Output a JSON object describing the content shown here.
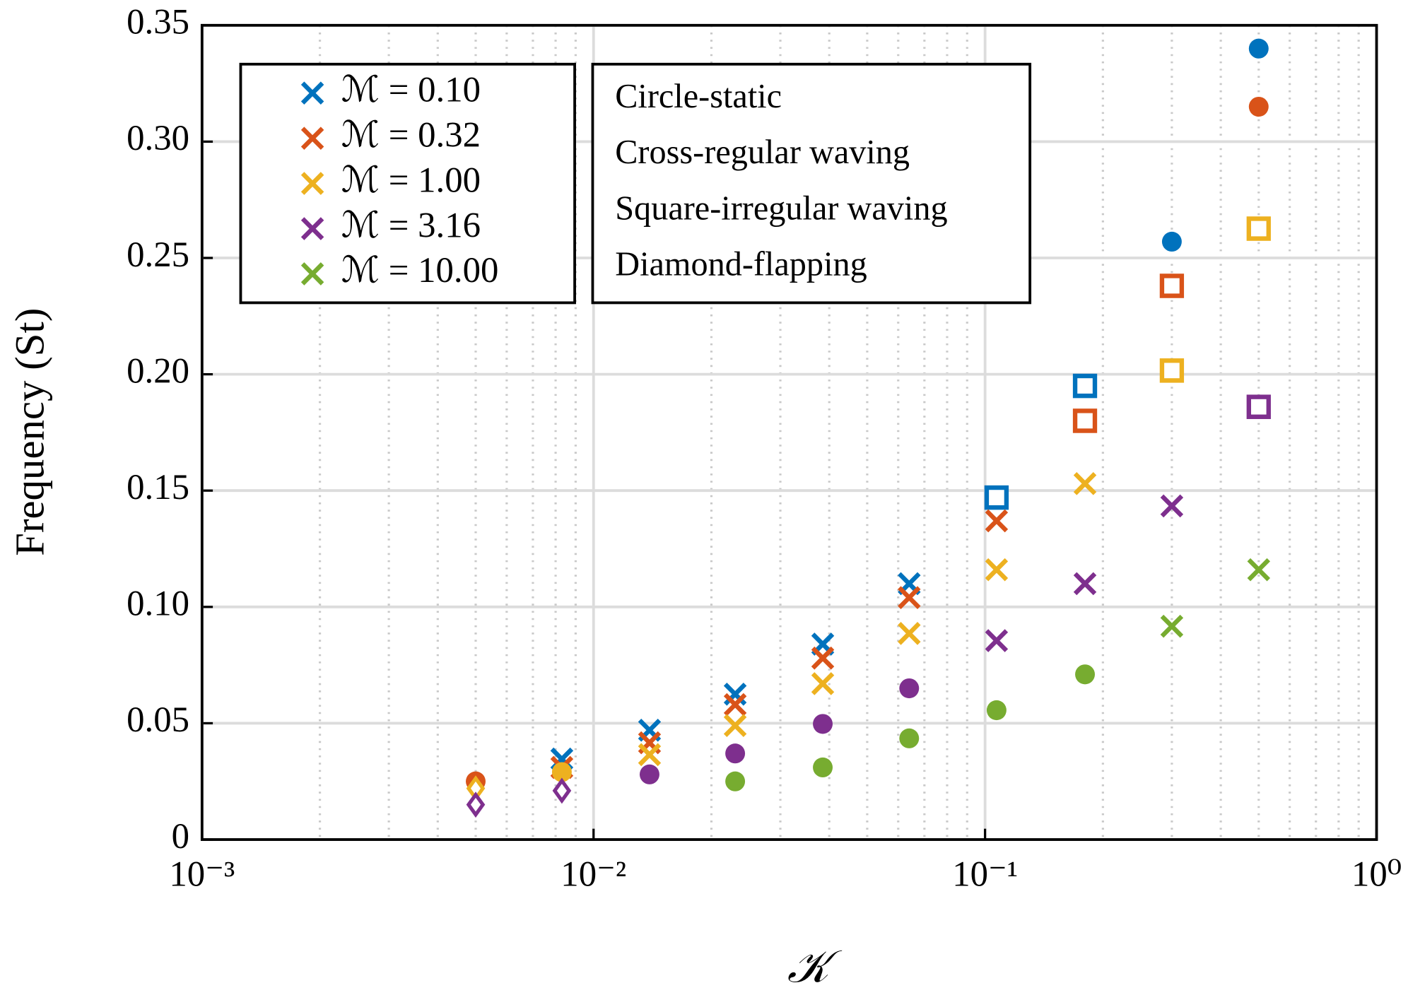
{
  "chart_data": {
    "type": "scatter",
    "x_label": "𝒦",
    "y_label": "Frequency (St)",
    "xscale": "log",
    "xlim": [
      0.001,
      1
    ],
    "ylim": [
      0,
      0.35
    ],
    "xticks": [
      {
        "value": 0.001,
        "label": "10⁻³"
      },
      {
        "value": 0.01,
        "label": "10⁻²"
      },
      {
        "value": 0.1,
        "label": "10⁻¹"
      },
      {
        "value": 1,
        "label": "10⁰"
      }
    ],
    "x_minor_ticks": [
      0.002,
      0.003,
      0.004,
      0.005,
      0.006,
      0.007,
      0.008,
      0.009,
      0.02,
      0.03,
      0.04,
      0.05,
      0.06,
      0.07,
      0.08,
      0.09,
      0.2,
      0.3,
      0.4,
      0.5,
      0.6,
      0.7,
      0.8,
      0.9
    ],
    "yticks": [
      0,
      0.05,
      {
        "value": 0.1,
        "label": "0.10"
      },
      0.15,
      {
        "value": 0.2,
        "label": "0.20"
      },
      0.25,
      {
        "value": 0.3,
        "label": "0.30"
      },
      0.35
    ],
    "grid": true,
    "minor_grid": true,
    "legend": "top-left",
    "marker_legend": [
      "Circle-static",
      "Cross-regular waving",
      "Square-irregular waving",
      "Diamond-flapping"
    ],
    "series": [
      {
        "name": "ℳ = 0.10",
        "color": "#0072BD",
        "x": [
          0.0083,
          0.0139,
          0.023,
          0.0385,
          0.064,
          0.107,
          0.18,
          0.3,
          0.5
        ],
        "values": [
          0.0346,
          0.047,
          0.0625,
          0.084,
          0.11,
          0.147,
          0.195,
          0.257,
          0.34
        ],
        "markers": [
          "cross",
          "cross",
          "cross",
          "cross",
          "cross",
          "square",
          "square",
          "circle",
          "circle"
        ]
      },
      {
        "name": "ℳ = 0.32",
        "color": "#D95319",
        "x": [
          0.005,
          0.0083,
          0.0139,
          0.023,
          0.0385,
          0.064,
          0.107,
          0.18,
          0.3,
          0.5
        ],
        "values": [
          0.025,
          0.031,
          0.0416,
          0.058,
          0.078,
          0.104,
          0.137,
          0.18,
          0.238,
          0.315
        ],
        "markers": [
          "circle",
          "cross",
          "cross",
          "cross",
          "cross",
          "cross",
          "cross",
          "square",
          "square",
          "circle"
        ]
      },
      {
        "name": "ℳ = 1.00",
        "color": "#EDB120",
        "x": [
          0.005,
          0.0083,
          0.0139,
          0.023,
          0.0385,
          0.064,
          0.107,
          0.18,
          0.3,
          0.5
        ],
        "values": [
          0.022,
          0.029,
          0.0365,
          0.049,
          0.067,
          0.0886,
          0.116,
          0.153,
          0.2016,
          0.2626
        ],
        "markers": [
          "diamond",
          "circle",
          "cross",
          "cross",
          "cross",
          "cross",
          "cross",
          "cross",
          "square",
          "square"
        ]
      },
      {
        "name": "ℳ = 3.16",
        "color": "#7E2F8E",
        "x": [
          0.005,
          0.0083,
          0.0139,
          0.023,
          0.0385,
          0.064,
          0.107,
          0.18,
          0.3,
          0.5
        ],
        "values": [
          0.015,
          0.021,
          0.028,
          0.037,
          0.0497,
          0.065,
          0.0855,
          0.11,
          0.1434,
          0.186
        ],
        "markers": [
          "diamond",
          "diamond",
          "circle",
          "circle",
          "circle",
          "circle",
          "cross",
          "cross",
          "cross",
          "square"
        ]
      },
      {
        "name": "ℳ = 10.00",
        "color": "#77AC30",
        "x": [
          0.023,
          0.0385,
          0.064,
          0.107,
          0.18,
          0.3,
          0.5
        ],
        "values": [
          0.025,
          0.031,
          0.0435,
          0.0556,
          0.071,
          0.0917,
          0.116
        ],
        "markers": [
          "circle",
          "circle",
          "circle",
          "circle",
          "circle",
          "cross",
          "cross"
        ]
      }
    ]
  }
}
